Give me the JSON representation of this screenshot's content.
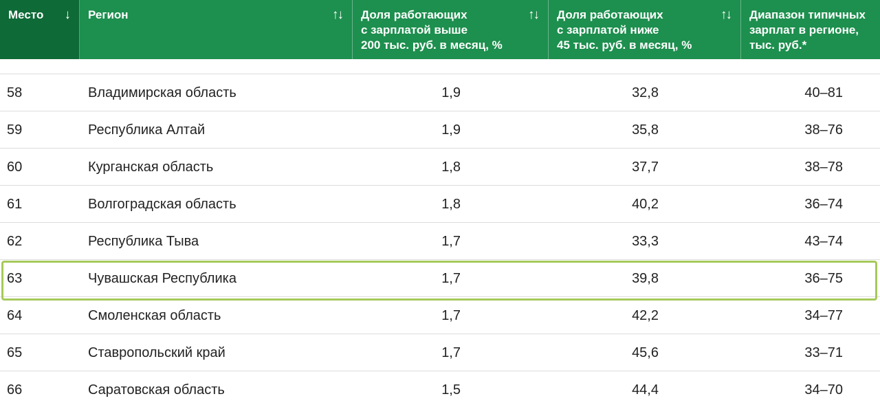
{
  "columns": [
    {
      "label": "Место",
      "sort_icon": "↓"
    },
    {
      "label": "Регион",
      "sort_icon": "↑↓"
    },
    {
      "label": "Доля работающих\nс зарплатой выше\n200 тыс. руб. в месяц, %",
      "sort_icon": "↑↓"
    },
    {
      "label": "Доля работающих\nс зарплатой ниже\n45 тыс. руб. в месяц, %",
      "sort_icon": "↑↓"
    },
    {
      "label": "Диапазон типичных\nзарплат в регионе,\nтыс. руб.*",
      "sort_icon": ""
    }
  ],
  "rows": [
    {
      "rank": "58",
      "region": "Владимирская область",
      "share_above_200": "1,9",
      "share_below_45": "32,8",
      "typical_range": "40–81",
      "highlighted": false
    },
    {
      "rank": "59",
      "region": "Республика Алтай",
      "share_above_200": "1,9",
      "share_below_45": "35,8",
      "typical_range": "38–76",
      "highlighted": false
    },
    {
      "rank": "60",
      "region": "Курганская область",
      "share_above_200": "1,8",
      "share_below_45": "37,7",
      "typical_range": "38–78",
      "highlighted": false
    },
    {
      "rank": "61",
      "region": "Волгоградская область",
      "share_above_200": "1,8",
      "share_below_45": "40,2",
      "typical_range": "36–74",
      "highlighted": false
    },
    {
      "rank": "62",
      "region": "Республика Тыва",
      "share_above_200": "1,7",
      "share_below_45": "33,3",
      "typical_range": "43–74",
      "highlighted": false
    },
    {
      "rank": "63",
      "region": "Чувашская Республика",
      "share_above_200": "1,7",
      "share_below_45": "39,8",
      "typical_range": "36–75",
      "highlighted": true
    },
    {
      "rank": "64",
      "region": "Смоленская область",
      "share_above_200": "1,7",
      "share_below_45": "42,2",
      "typical_range": "34–77",
      "highlighted": false
    },
    {
      "rank": "65",
      "region": "Ставропольский край",
      "share_above_200": "1,7",
      "share_below_45": "45,6",
      "typical_range": "33–71",
      "highlighted": false
    },
    {
      "rank": "66",
      "region": "Саратовская область",
      "share_above_200": "1,5",
      "share_below_45": "44,4",
      "typical_range": "34–70",
      "highlighted": false
    }
  ],
  "colors": {
    "header_bg": "#1d8f4e",
    "header_active_bg": "#0e6a36",
    "highlight_border": "#a6c95a"
  }
}
